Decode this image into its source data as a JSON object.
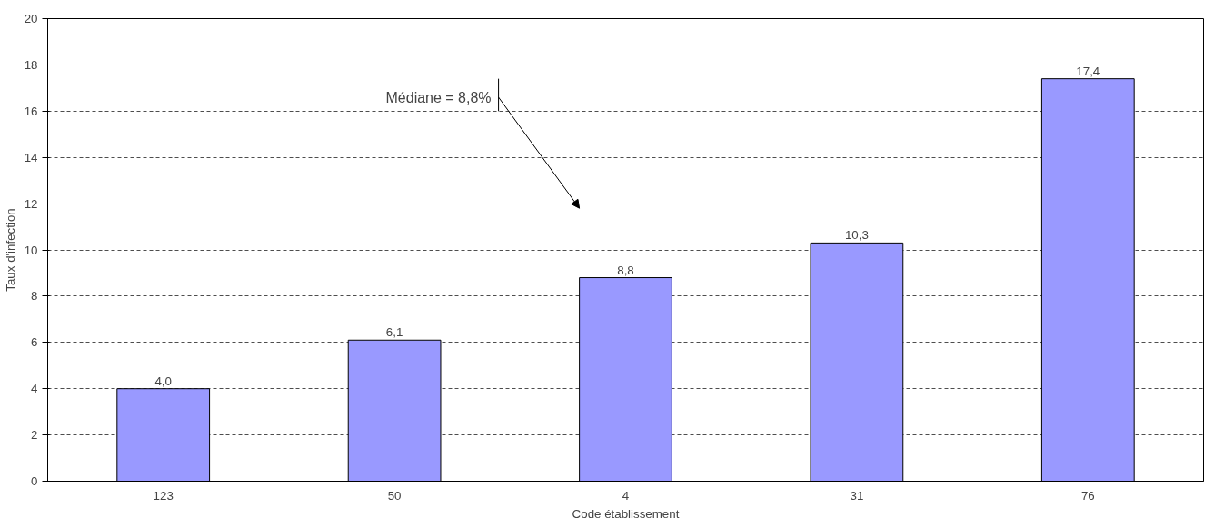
{
  "chart_data": {
    "type": "bar",
    "xlabel": "Code établissement",
    "ylabel": "Taux d'infection",
    "categories": [
      "123",
      "50",
      "4",
      "31",
      "76"
    ],
    "values": [
      4.0,
      6.1,
      8.8,
      10.3,
      17.4
    ],
    "value_labels": [
      "4,0",
      "6,1",
      "8,8",
      "10,3",
      "17,4"
    ],
    "color": "#9999ff",
    "ylim": [
      0,
      20
    ],
    "yticks": [
      0,
      2,
      4,
      6,
      8,
      10,
      12,
      14,
      16,
      18,
      20
    ],
    "grid": "y",
    "annotations": [
      "Médiane = 8,8%"
    ]
  }
}
